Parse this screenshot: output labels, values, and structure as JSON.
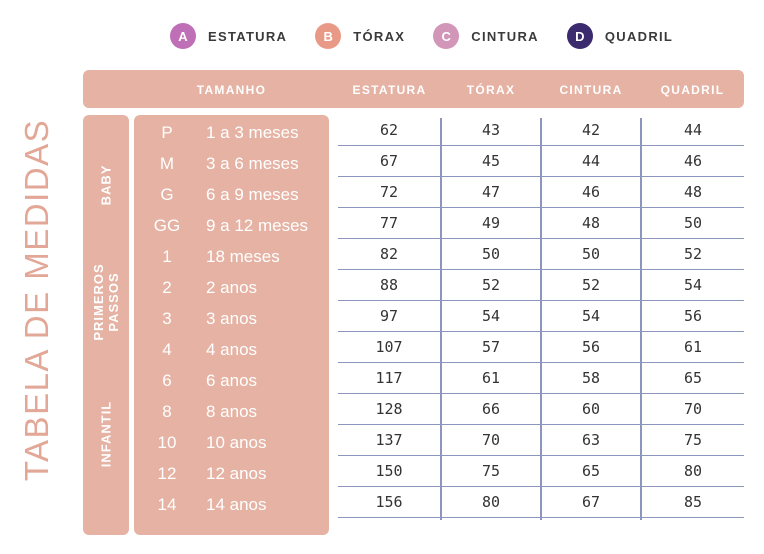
{
  "legend": [
    {
      "letter": "A",
      "label": "ESTATURA",
      "color": "#bf6fb5"
    },
    {
      "letter": "B",
      "label": "TÓRAX",
      "color": "#e99a86"
    },
    {
      "letter": "C",
      "label": "CINTURA",
      "color": "#d296b8"
    },
    {
      "letter": "D",
      "label": "QUADRIL",
      "color": "#3b2a6d"
    }
  ],
  "title": "TABELA DE MEDIDAS",
  "header": {
    "tamanho": "TAMANHO",
    "estatura": "ESTATURA",
    "torax": "TÓRAX",
    "cintura": "CINTURA",
    "quadril": "QUADRIL"
  },
  "groups": {
    "baby": "BABY",
    "primeiros_1": "PRIMEROS",
    "primeiros_2": "PASSOS",
    "infantil": "INFANTIL"
  },
  "rows": [
    {
      "code": "P",
      "age": "1 a 3 meses",
      "estatura": "62",
      "torax": "43",
      "cintura": "42",
      "quadril": "44"
    },
    {
      "code": "M",
      "age": "3 a 6 meses",
      "estatura": "67",
      "torax": "45",
      "cintura": "44",
      "quadril": "46"
    },
    {
      "code": "G",
      "age": "6 a 9 meses",
      "estatura": "72",
      "torax": "47",
      "cintura": "46",
      "quadril": "48"
    },
    {
      "code": "GG",
      "age": "9 a 12 meses",
      "estatura": "77",
      "torax": "49",
      "cintura": "48",
      "quadril": "50"
    },
    {
      "code": "1",
      "age": "18 meses",
      "estatura": "82",
      "torax": "50",
      "cintura": "50",
      "quadril": "52"
    },
    {
      "code": "2",
      "age": "2 anos",
      "estatura": "88",
      "torax": "52",
      "cintura": "52",
      "quadril": "54"
    },
    {
      "code": "3",
      "age": "3 anos",
      "estatura": "97",
      "torax": "54",
      "cintura": "54",
      "quadril": "56"
    },
    {
      "code": "4",
      "age": "4 anos",
      "estatura": "107",
      "torax": "57",
      "cintura": "56",
      "quadril": "61"
    },
    {
      "code": "6",
      "age": "6 anos",
      "estatura": "117",
      "torax": "61",
      "cintura": "58",
      "quadril": "65"
    },
    {
      "code": "8",
      "age": "8 anos",
      "estatura": "128",
      "torax": "66",
      "cintura": "60",
      "quadril": "70"
    },
    {
      "code": "10",
      "age": "10 anos",
      "estatura": "137",
      "torax": "70",
      "cintura": "63",
      "quadril": "75"
    },
    {
      "code": "12",
      "age": "12 anos",
      "estatura": "150",
      "torax": "75",
      "cintura": "65",
      "quadril": "80"
    },
    {
      "code": "14",
      "age": "14 anos",
      "estatura": "156",
      "torax": "80",
      "cintura": "67",
      "quadril": "85"
    }
  ]
}
